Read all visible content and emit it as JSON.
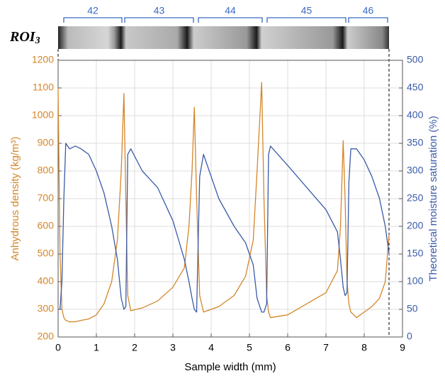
{
  "chart_data": {
    "type": "line",
    "strip_label": "ROI",
    "strip_label_subscript": "3",
    "ring_labels": [
      "42",
      "43",
      "44",
      "45",
      "46"
    ],
    "xlabel": "Sample width (mm)",
    "ylabel": "Anhydrous density (kg/m³)",
    "y2label": "Theoretical moisture saturation (%)",
    "x": [
      0,
      0.05,
      0.1,
      0.15,
      0.2,
      0.3,
      0.45,
      0.6,
      0.8,
      1.0,
      1.2,
      1.4,
      1.55,
      1.65,
      1.72,
      1.77,
      1.82,
      1.9,
      2.2,
      2.6,
      3.0,
      3.3,
      3.42,
      3.5,
      3.56,
      3.62,
      3.7,
      3.8,
      4.2,
      4.6,
      4.9,
      5.1,
      5.2,
      5.32,
      5.38,
      5.45,
      5.5,
      5.55,
      6.0,
      6.5,
      7.0,
      7.3,
      7.38,
      7.45,
      7.5,
      7.55,
      7.6,
      7.65,
      7.8,
      8.0,
      8.2,
      8.4,
      8.55,
      8.65
    ],
    "series": [
      {
        "name": "Anhydrous density",
        "color": "#d4862a",
        "axis": "y",
        "values": [
          1100,
          500,
          300,
          270,
          260,
          255,
          255,
          260,
          265,
          280,
          320,
          400,
          550,
          800,
          1080,
          700,
          350,
          295,
          305,
          330,
          380,
          450,
          600,
          800,
          1030,
          700,
          350,
          290,
          310,
          350,
          420,
          550,
          800,
          1120,
          700,
          350,
          290,
          270,
          280,
          320,
          360,
          440,
          600,
          910,
          700,
          400,
          320,
          290,
          270,
          290,
          310,
          340,
          400,
          570
        ]
      },
      {
        "name": "Theoretical moisture saturation",
        "color": "#3a5aa8",
        "axis": "y2",
        "values": [
          50,
          50,
          100,
          250,
          350,
          340,
          345,
          340,
          330,
          300,
          260,
          200,
          140,
          70,
          50,
          55,
          330,
          340,
          300,
          270,
          210,
          140,
          100,
          70,
          50,
          45,
          290,
          330,
          250,
          200,
          170,
          130,
          70,
          45,
          45,
          60,
          330,
          345,
          310,
          270,
          230,
          190,
          140,
          90,
          75,
          80,
          280,
          340,
          340,
          320,
          290,
          250,
          200,
          150
        ]
      }
    ],
    "xlim": [
      0,
      9
    ],
    "xticks": [
      0,
      1,
      2,
      3,
      4,
      5,
      6,
      7,
      8,
      9
    ],
    "ylim": [
      200,
      1200
    ],
    "yticks": [
      200,
      300,
      400,
      500,
      600,
      700,
      800,
      900,
      1000,
      1100,
      1200
    ],
    "y2lim": [
      0,
      500
    ],
    "y2ticks": [
      0,
      50,
      100,
      150,
      200,
      250,
      300,
      350,
      400,
      450,
      500
    ],
    "grid": true
  }
}
